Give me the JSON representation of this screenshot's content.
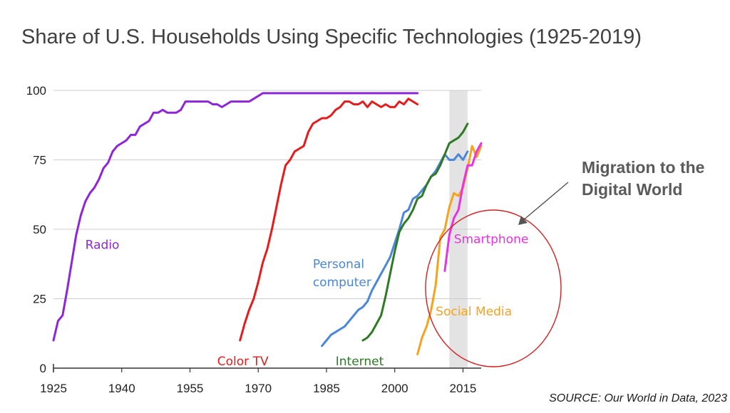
{
  "annotation": "Migration to the Digital World",
  "source": "SOURCE: Our World in Data, 2023",
  "colors": {
    "radio": "#8e26d8",
    "color_tv": "#e61c1c",
    "personal_computer": "#4a86d9",
    "internet": "#2e7a26",
    "social_media": "#f5a21f",
    "smartphone": "#e833e0",
    "circle": "#d32020",
    "arrow": "#555555",
    "shade": "#e3e3e3"
  },
  "chart_data": {
    "type": "line",
    "title": "Share of U.S. Households Using Specific Technologies (1925-2019)",
    "xlabel": "",
    "ylabel": "",
    "xlim": [
      1925,
      2019
    ],
    "ylim": [
      0,
      100
    ],
    "xticks": [
      1925,
      1940,
      1955,
      1970,
      1985,
      2000,
      2015
    ],
    "yticks": [
      0,
      25,
      50,
      75,
      100
    ],
    "highlight_band": [
      2012,
      2016
    ],
    "series": [
      {
        "name": "Radio",
        "color_key": "radio",
        "x": [
          1925,
          1926,
          1927,
          1928,
          1929,
          1930,
          1931,
          1932,
          1933,
          1934,
          1935,
          1936,
          1937,
          1938,
          1939,
          1940,
          1941,
          1942,
          1943,
          1944,
          1945,
          1946,
          1947,
          1948,
          1949,
          1950,
          1951,
          1952,
          1953,
          1954,
          1955,
          1956,
          1957,
          1958,
          1959,
          1960,
          1961,
          1962,
          1963,
          1964,
          1965,
          1966,
          1967,
          1968,
          1969,
          1970,
          1971,
          1975,
          1980,
          1985,
          1990,
          1995,
          2000,
          2005
        ],
        "y": [
          10,
          17,
          19,
          28,
          38,
          48,
          55,
          60,
          63,
          65,
          68,
          72,
          74,
          78,
          80,
          81,
          82,
          84,
          84,
          87,
          88,
          89,
          92,
          92,
          93,
          92,
          92,
          92,
          93,
          96,
          96,
          96,
          96,
          96,
          96,
          95,
          95,
          94,
          95,
          96,
          96,
          96,
          96,
          96,
          97,
          98,
          99,
          99,
          99,
          99,
          99,
          99,
          99,
          99
        ]
      },
      {
        "name": "Color TV",
        "color_key": "color_tv",
        "x": [
          1966,
          1967,
          1968,
          1969,
          1970,
          1971,
          1972,
          1973,
          1974,
          1975,
          1976,
          1977,
          1978,
          1979,
          1980,
          1981,
          1982,
          1983,
          1984,
          1985,
          1986,
          1987,
          1988,
          1989,
          1990,
          1991,
          1992,
          1993,
          1994,
          1995,
          1996,
          1997,
          1998,
          1999,
          2000,
          2001,
          2002,
          2003,
          2004,
          2005
        ],
        "y": [
          10,
          16,
          21,
          25,
          31,
          38,
          43,
          50,
          58,
          66,
          73,
          75,
          78,
          79,
          80,
          85,
          88,
          89,
          90,
          90,
          91,
          93,
          94,
          96,
          96,
          95,
          95,
          96,
          94,
          96,
          95,
          94,
          95,
          94,
          94,
          96,
          95,
          97,
          96,
          95
        ]
      },
      {
        "name": "Personal computer",
        "color_key": "personal_computer",
        "x": [
          1984,
          1985,
          1986,
          1987,
          1988,
          1989,
          1990,
          1991,
          1992,
          1993,
          1994,
          1995,
          1996,
          1997,
          1998,
          1999,
          2000,
          2001,
          2002,
          2003,
          2004,
          2005,
          2006,
          2007,
          2008,
          2009,
          2010,
          2011,
          2012,
          2013,
          2014,
          2015,
          2016
        ],
        "y": [
          8,
          10,
          12,
          13,
          14,
          15,
          17,
          19,
          21,
          22,
          24,
          28,
          31,
          34,
          37,
          40,
          45,
          50,
          56,
          57,
          61,
          62,
          64,
          66,
          69,
          71,
          74,
          77,
          75,
          75,
          77,
          75,
          78
        ]
      },
      {
        "name": "Internet",
        "color_key": "internet",
        "x": [
          1993,
          1994,
          1995,
          1996,
          1997,
          1998,
          1999,
          2000,
          2001,
          2002,
          2003,
          2004,
          2005,
          2006,
          2007,
          2008,
          2009,
          2010,
          2011,
          2012,
          2013,
          2014,
          2015,
          2016
        ],
        "y": [
          10,
          11,
          13,
          16,
          19,
          26,
          34,
          42,
          49,
          52,
          54,
          57,
          61,
          62,
          66,
          69,
          70,
          73,
          77,
          81,
          82,
          83,
          85,
          88
        ]
      },
      {
        "name": "Social Media",
        "color_key": "social_media",
        "x": [
          2005,
          2006,
          2007,
          2008,
          2009,
          2010,
          2011,
          2012,
          2013,
          2014,
          2015,
          2016,
          2017,
          2018,
          2019
        ],
        "y": [
          5,
          11,
          15,
          21,
          30,
          47,
          50,
          58,
          63,
          62,
          65,
          72,
          80,
          76,
          80
        ]
      },
      {
        "name": "Smartphone",
        "color_key": "smartphone",
        "x": [
          2011,
          2012,
          2013,
          2014,
          2015,
          2016,
          2017,
          2018,
          2019
        ],
        "y": [
          35,
          48,
          54,
          57,
          66,
          73,
          73,
          78,
          81
        ]
      }
    ],
    "series_labels": [
      {
        "text": "Radio",
        "color_key": "radio",
        "x": 1932,
        "y": 43
      },
      {
        "text": "Color TV",
        "color_key": "color_tv",
        "x": 1961,
        "y": 1
      },
      {
        "text": "Personal",
        "color_key": "personal_computer",
        "x": 1982,
        "y": 36
      },
      {
        "text": "computer",
        "color_key": "personal_computer",
        "x": 1982,
        "y": 29.5
      },
      {
        "text": "Internet",
        "color_key": "internet",
        "x": 1987,
        "y": 1
      },
      {
        "text": "Social Media",
        "color_key": "social_media",
        "x": 2009,
        "y": 19
      },
      {
        "text": "Smartphone",
        "color_key": "smartphone",
        "x": 2013,
        "y": 45
      }
    ]
  }
}
